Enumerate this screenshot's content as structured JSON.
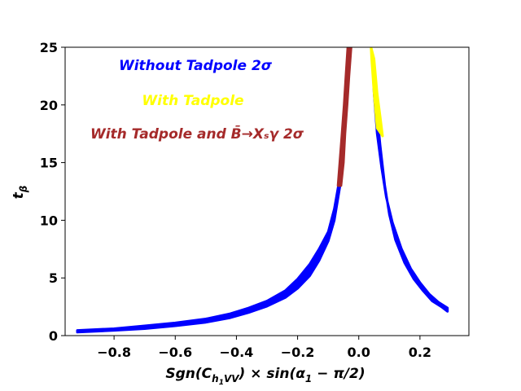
{
  "chart_data": {
    "type": "scatter",
    "title": "",
    "xlabel": "Sgn(C_h1VV) × sin(α1 − π/2)",
    "ylabel": "t_β",
    "xlim": [
      -0.96,
      0.36
    ],
    "ylim": [
      0,
      25
    ],
    "grid": false,
    "x_ticks": [
      -0.8,
      -0.6,
      -0.4,
      -0.2,
      0.0,
      0.2
    ],
    "x_tick_labels": [
      "−0.8",
      "−0.6",
      "−0.4",
      "−0.2",
      "0.0",
      "0.2"
    ],
    "y_ticks": [
      0,
      5,
      10,
      15,
      20,
      25
    ],
    "y_tick_labels": [
      "0",
      "5",
      "10",
      "15",
      "20",
      "25"
    ],
    "legend_placement": "top-left inside",
    "series": [
      {
        "name": "Without Tadpole 2σ",
        "color": "#0000ff",
        "legend_text": "Without Tadpole  2σ",
        "bands": [
          {
            "outer": [
              [
                -0.92,
                0.45
              ],
              [
                -0.8,
                0.6
              ],
              [
                -0.7,
                0.85
              ],
              [
                -0.6,
                1.1
              ],
              [
                -0.5,
                1.45
              ],
              [
                -0.42,
                1.9
              ],
              [
                -0.36,
                2.4
              ],
              [
                -0.3,
                3.0
              ],
              [
                -0.24,
                3.9
              ],
              [
                -0.2,
                4.9
              ],
              [
                -0.16,
                6.2
              ],
              [
                -0.13,
                7.5
              ],
              [
                -0.1,
                9.0
              ],
              [
                -0.08,
                11.0
              ],
              [
                -0.06,
                14.0
              ],
              [
                -0.05,
                16.5
              ],
              [
                -0.04,
                20.5
              ],
              [
                -0.035,
                24.0
              ]
            ],
            "inner": [
              [
                -0.92,
                0.3
              ],
              [
                -0.8,
                0.45
              ],
              [
                -0.7,
                0.6
              ],
              [
                -0.6,
                0.85
              ],
              [
                -0.5,
                1.15
              ],
              [
                -0.42,
                1.55
              ],
              [
                -0.36,
                2.0
              ],
              [
                -0.3,
                2.55
              ],
              [
                -0.24,
                3.3
              ],
              [
                -0.2,
                4.1
              ],
              [
                -0.16,
                5.2
              ],
              [
                -0.13,
                6.5
              ],
              [
                -0.1,
                8.2
              ],
              [
                -0.08,
                10.0
              ],
              [
                -0.06,
                13.2
              ],
              [
                -0.05,
                16.0
              ],
              [
                -0.04,
                20.5
              ],
              [
                -0.035,
                24.0
              ]
            ]
          },
          {
            "outer": [
              [
                0.045,
                24.0
              ],
              [
                0.05,
                21.0
              ],
              [
                0.06,
                17.5
              ],
              [
                0.075,
                14.5
              ],
              [
                0.09,
                12.0
              ],
              [
                0.11,
                9.8
              ],
              [
                0.14,
                7.5
              ],
              [
                0.17,
                5.8
              ],
              [
                0.2,
                4.6
              ],
              [
                0.23,
                3.6
              ],
              [
                0.26,
                2.9
              ],
              [
                0.29,
                2.4
              ]
            ],
            "inner": [
              [
                0.045,
                24.0
              ],
              [
                0.055,
                20.5
              ],
              [
                0.07,
                16.5
              ],
              [
                0.085,
                13.0
              ],
              [
                0.1,
                10.5
              ],
              [
                0.12,
                8.3
              ],
              [
                0.15,
                6.3
              ],
              [
                0.18,
                4.9
              ],
              [
                0.21,
                3.9
              ],
              [
                0.24,
                3.0
              ],
              [
                0.27,
                2.5
              ],
              [
                0.29,
                2.1
              ]
            ]
          }
        ]
      },
      {
        "name": "With Tadpole",
        "color": "#ffff00",
        "legend_text": "With Tadpole",
        "bands": [
          {
            "outer": [
              [
                0.04,
                25.0
              ],
              [
                0.05,
                24.0
              ],
              [
                0.06,
                21.0
              ],
              [
                0.07,
                19.0
              ],
              [
                0.078,
                17.3
              ]
            ],
            "inner": [
              [
                0.04,
                25.0
              ],
              [
                0.042,
                24.0
              ],
              [
                0.05,
                21.0
              ],
              [
                0.055,
                19.5
              ],
              [
                0.06,
                18.0
              ]
            ]
          }
        ]
      },
      {
        "name": "With Tadpole and B̄→X_sγ 2σ",
        "color": "#a52a2a",
        "legend_text": "With Tadpole and B̄→Xₛγ  2σ",
        "bands": [
          {
            "outer": [
              [
                -0.068,
                13.0
              ],
              [
                -0.062,
                15.0
              ],
              [
                -0.055,
                17.5
              ],
              [
                -0.048,
                20.0
              ],
              [
                -0.042,
                22.5
              ],
              [
                -0.036,
                25.0
              ]
            ],
            "inner": [
              [
                -0.058,
                13.0
              ],
              [
                -0.05,
                15.0
              ],
              [
                -0.045,
                17.5
              ],
              [
                -0.038,
                20.0
              ],
              [
                -0.032,
                22.5
              ],
              [
                -0.025,
                25.0
              ]
            ]
          }
        ]
      }
    ]
  }
}
